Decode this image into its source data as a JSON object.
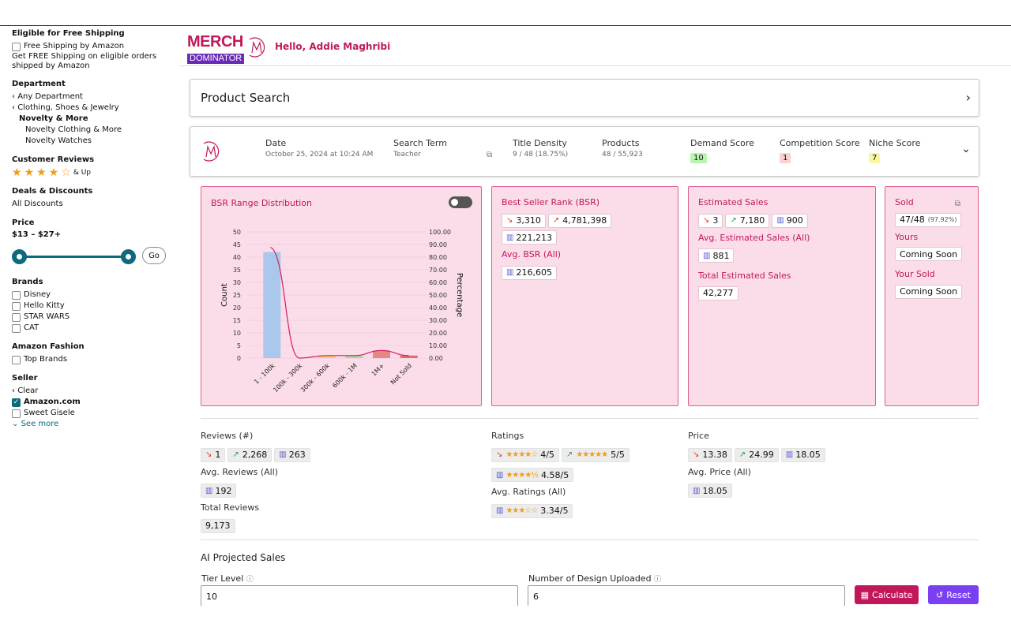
{
  "sidebar": {
    "shipping": {
      "heading": "Eligible for Free Shipping",
      "option": "Free Shipping by Amazon",
      "desc": "Get FREE Shipping on eligible orders shipped by Amazon"
    },
    "department": {
      "heading": "Department",
      "items": [
        "Any Department",
        "Clothing, Shoes & Jewelry",
        "Novelty & More",
        "Novelty Clothing & More",
        "Novelty Watches"
      ]
    },
    "reviews": {
      "heading": "Customer Reviews",
      "rating": 4,
      "suffix": "& Up"
    },
    "deals": {
      "heading": "Deals & Discounts",
      "item": "All Discounts"
    },
    "price": {
      "heading": "Price",
      "range": "$13 – $27+",
      "go": "Go"
    },
    "brands": {
      "heading": "Brands",
      "items": [
        "Disney",
        "Hello Kitty",
        "STAR WARS",
        "CAT"
      ]
    },
    "fashion": {
      "heading": "Amazon Fashion",
      "item": "Top Brands"
    },
    "seller": {
      "heading": "Seller",
      "clear": "Clear",
      "items": [
        "Amazon.com",
        "Sweet Gisele"
      ],
      "see_more": "See more"
    }
  },
  "header": {
    "logo_top": "MERCH",
    "logo_bottom": "DOMINATOR",
    "greeting": "Hello, Addie Maghribi"
  },
  "product_search": {
    "title": "Product Search"
  },
  "summary": {
    "date_label": "Date",
    "date_value": "October 25, 2024 at 10:24 AM",
    "term_label": "Search Term",
    "term_value": "Teacher",
    "density_label": "Title Density",
    "density_value": "9 / 48 (18.75%)",
    "products_label": "Products",
    "products_value": "48 / 55,923",
    "demand_label": "Demand Score",
    "demand_value": "10",
    "competition_label": "Competition Score",
    "competition_value": "1",
    "niche_label": "Niche Score",
    "niche_value": "7",
    "colors": {
      "demand": "#b9f5b0",
      "competition": "#fbd0d0",
      "niche": "#fbf7a0"
    }
  },
  "chart_data": {
    "type": "bar",
    "title": "BSR Range Distribution",
    "categories": [
      "1 - 100k",
      "100k - 300k",
      "300k - 600k",
      "600k - 1M",
      "1M+",
      "Not Sold"
    ],
    "values": [
      42,
      0,
      1,
      1,
      3,
      1
    ],
    "ylabel": "Count",
    "ylabel_right": "Percentage",
    "ylim": [
      0,
      50
    ],
    "y_ticks": [
      "0",
      "5",
      "10",
      "15",
      "20",
      "25",
      "30",
      "35",
      "40",
      "45",
      "50"
    ],
    "y2_ticks": [
      "0.00",
      "10.00",
      "20.00",
      "30.00",
      "40.00",
      "50.00",
      "60.00",
      "70.00",
      "80.00",
      "90.00",
      "100.00"
    ],
    "bar_colors": [
      "#a9c8ec",
      "#f0b0a8",
      "#f2c96e",
      "#a8d8a0",
      "#e68686",
      "#e06b6b"
    ]
  },
  "bsr": {
    "title": "Best Seller Rank (BSR)",
    "low": "3,310",
    "high": "4,781,398",
    "avg": "221,213",
    "avg_all_label": "Avg. BSR (All)",
    "avg_all": "216,605"
  },
  "est_sales": {
    "title": "Estimated Sales",
    "low": "3",
    "high": "7,180",
    "avg": "900",
    "avg_all_label": "Avg. Estimated Sales (All)",
    "avg_all": "881",
    "total_label": "Total Estimated Sales",
    "total": "42,277"
  },
  "sold": {
    "title": "Sold",
    "value": "47/48",
    "pct": "(97.92%)",
    "yours_label": "Yours",
    "yours": "Coming Soon",
    "your_sold_label": "Your Sold",
    "your_sold": "Coming Soon"
  },
  "reviews_stats": {
    "label": "Reviews (#)",
    "low": "1",
    "high": "2,268",
    "avg": "263",
    "avg_all_label": "Avg. Reviews (All)",
    "avg_all": "192",
    "total_label": "Total Reviews",
    "total": "9,173"
  },
  "ratings_stats": {
    "label": "Ratings",
    "low": "4/5",
    "high": "5/5",
    "avg": "4.58/5",
    "avg_all_label": "Avg. Ratings (All)",
    "avg_all": "3.34/5"
  },
  "price_stats": {
    "label": "Price",
    "low": "13.38",
    "high": "24.99",
    "avg": "18.05",
    "avg_all_label": "Avg. Price (All)",
    "avg_all": "18.05"
  },
  "ai": {
    "title": "AI Projected Sales",
    "tier_label": "Tier Level",
    "tier_value": "10",
    "designs_label": "Number of Design Uploaded",
    "designs_value": "6",
    "calculate": "Calculate",
    "reset": "Reset"
  }
}
